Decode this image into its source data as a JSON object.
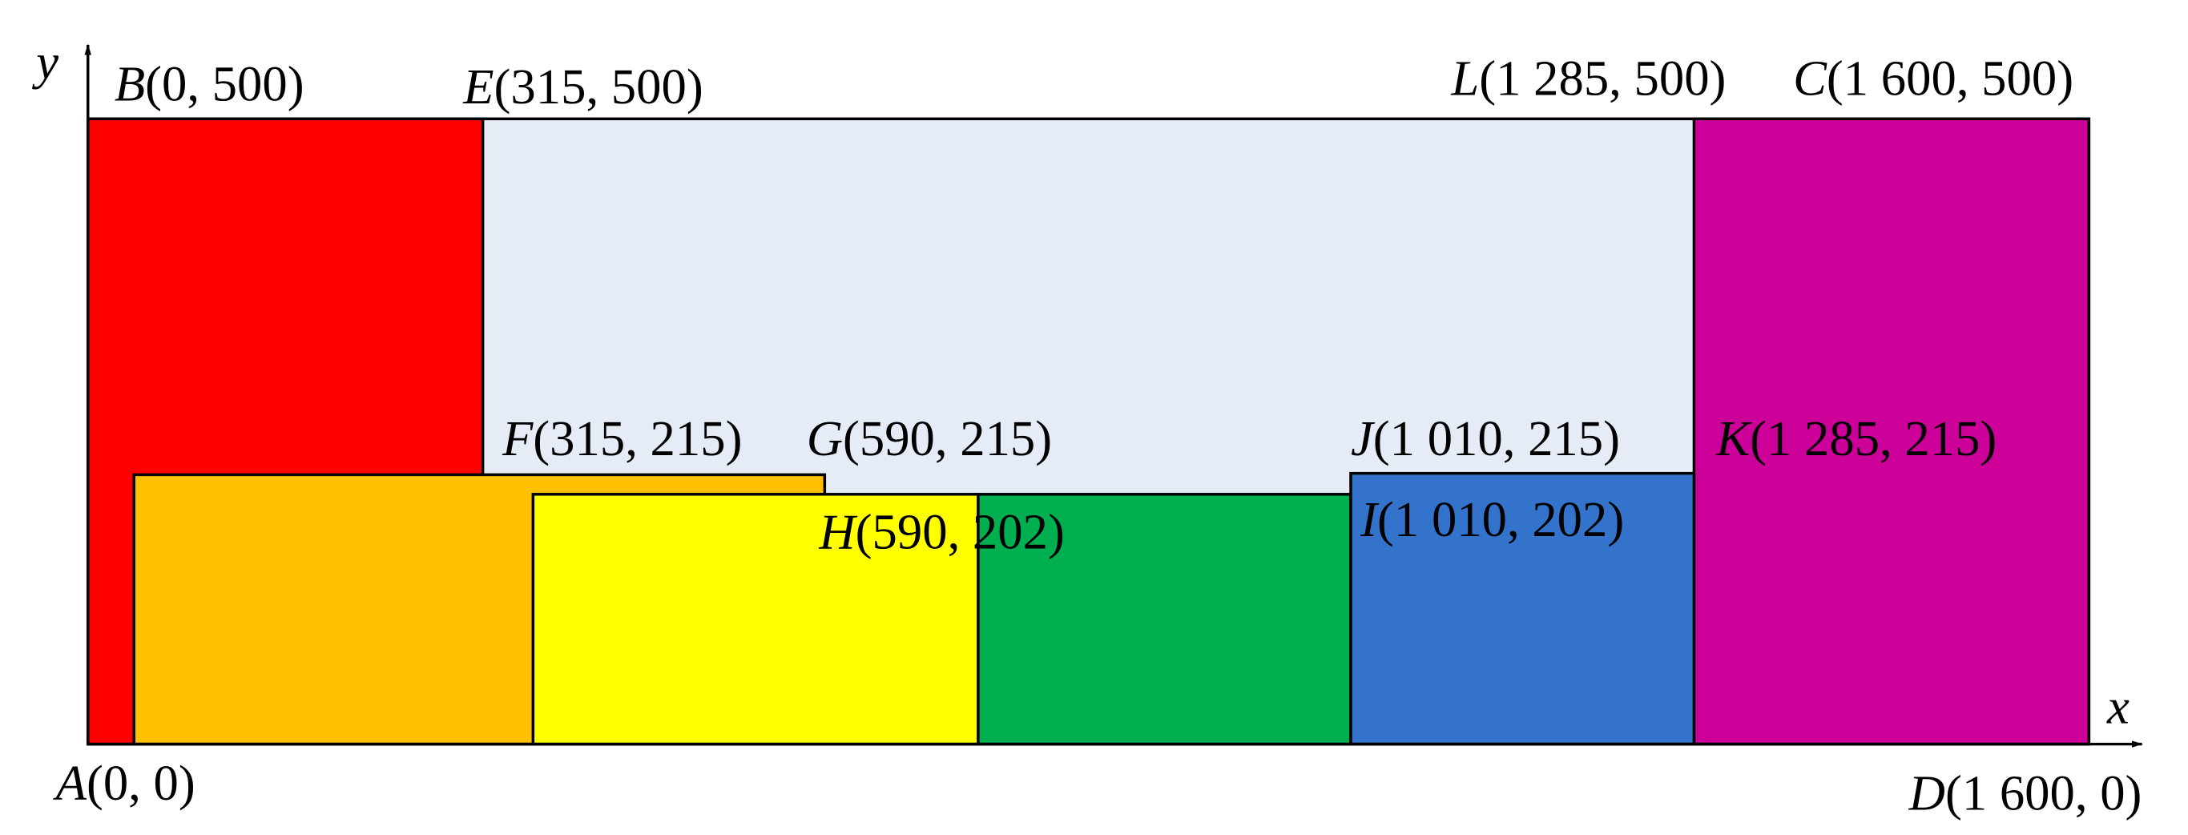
{
  "axes": {
    "x": "x",
    "y": "y"
  },
  "points": [
    {
      "letter": "B",
      "coords": "(0, 500)"
    },
    {
      "letter": "E",
      "coords": "(315, 500)"
    },
    {
      "letter": "L",
      "coords": "(1 285, 500)"
    },
    {
      "letter": "C",
      "coords": "(1 600, 500)"
    },
    {
      "letter": "F",
      "coords": "(315, 215)"
    },
    {
      "letter": "G",
      "coords": "(590, 215)"
    },
    {
      "letter": "J",
      "coords": "(1 010, 215)"
    },
    {
      "letter": "K",
      "coords": "(1 285, 215)"
    },
    {
      "letter": "H",
      "coords": "(590, 202)"
    },
    {
      "letter": "I",
      "coords": "(1 010, 202)"
    },
    {
      "letter": "A",
      "coords": "(0, 0)"
    },
    {
      "letter": "D",
      "coords": "(1 600, 0)"
    }
  ]
}
